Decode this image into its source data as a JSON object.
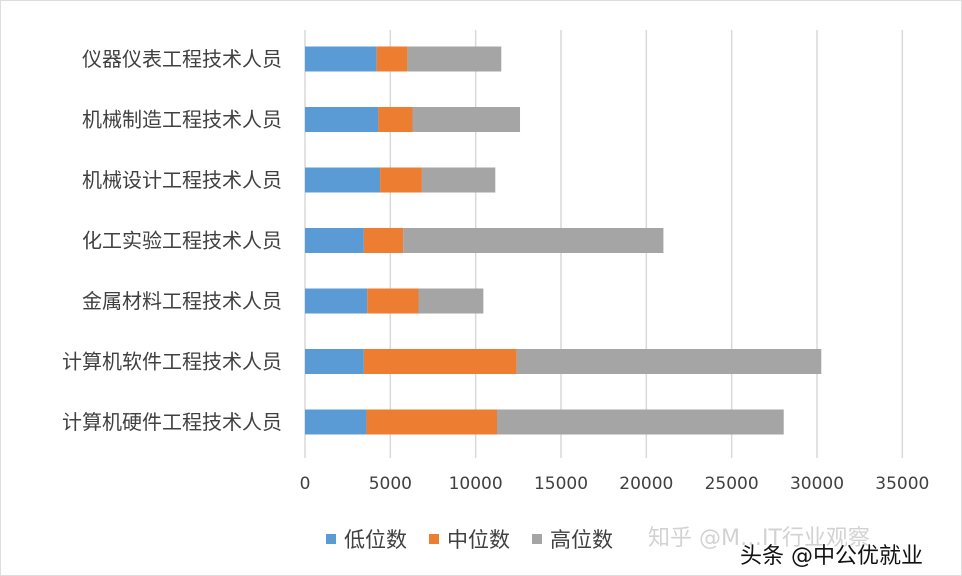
{
  "chart_data": {
    "type": "bar",
    "orientation": "horizontal",
    "stacked": true,
    "title": "",
    "categories": [
      "仪器仪表工程技术人员",
      "机械制造工程技术人员",
      "机械设计工程技术人员",
      "化工实验工程技术人员",
      "金属材料工程技术人员",
      "计算机软件工程技术人员",
      "计算机硬件工程技术人员"
    ],
    "series": [
      {
        "name": "低位数",
        "color": "#5b9bd5",
        "values": [
          4200,
          4300,
          4400,
          3450,
          3650,
          3450,
          3600
        ]
      },
      {
        "name": "中位数",
        "color": "#ed7d31",
        "values": [
          1800,
          2000,
          2450,
          2300,
          3000,
          8950,
          7650
        ]
      },
      {
        "name": "高位数",
        "color": "#a5a5a5",
        "values": [
          5500,
          6300,
          4300,
          15250,
          3800,
          17850,
          16800
        ]
      }
    ],
    "xlim": [
      0,
      35000
    ],
    "xticks": [
      "0",
      "5000",
      "10000",
      "15000",
      "20000",
      "25000",
      "30000",
      "35000"
    ],
    "grid": true,
    "legend": "bottom"
  },
  "watermarks": [
    "知乎 @M…IT行业观察",
    "头条 @中公优就业"
  ]
}
